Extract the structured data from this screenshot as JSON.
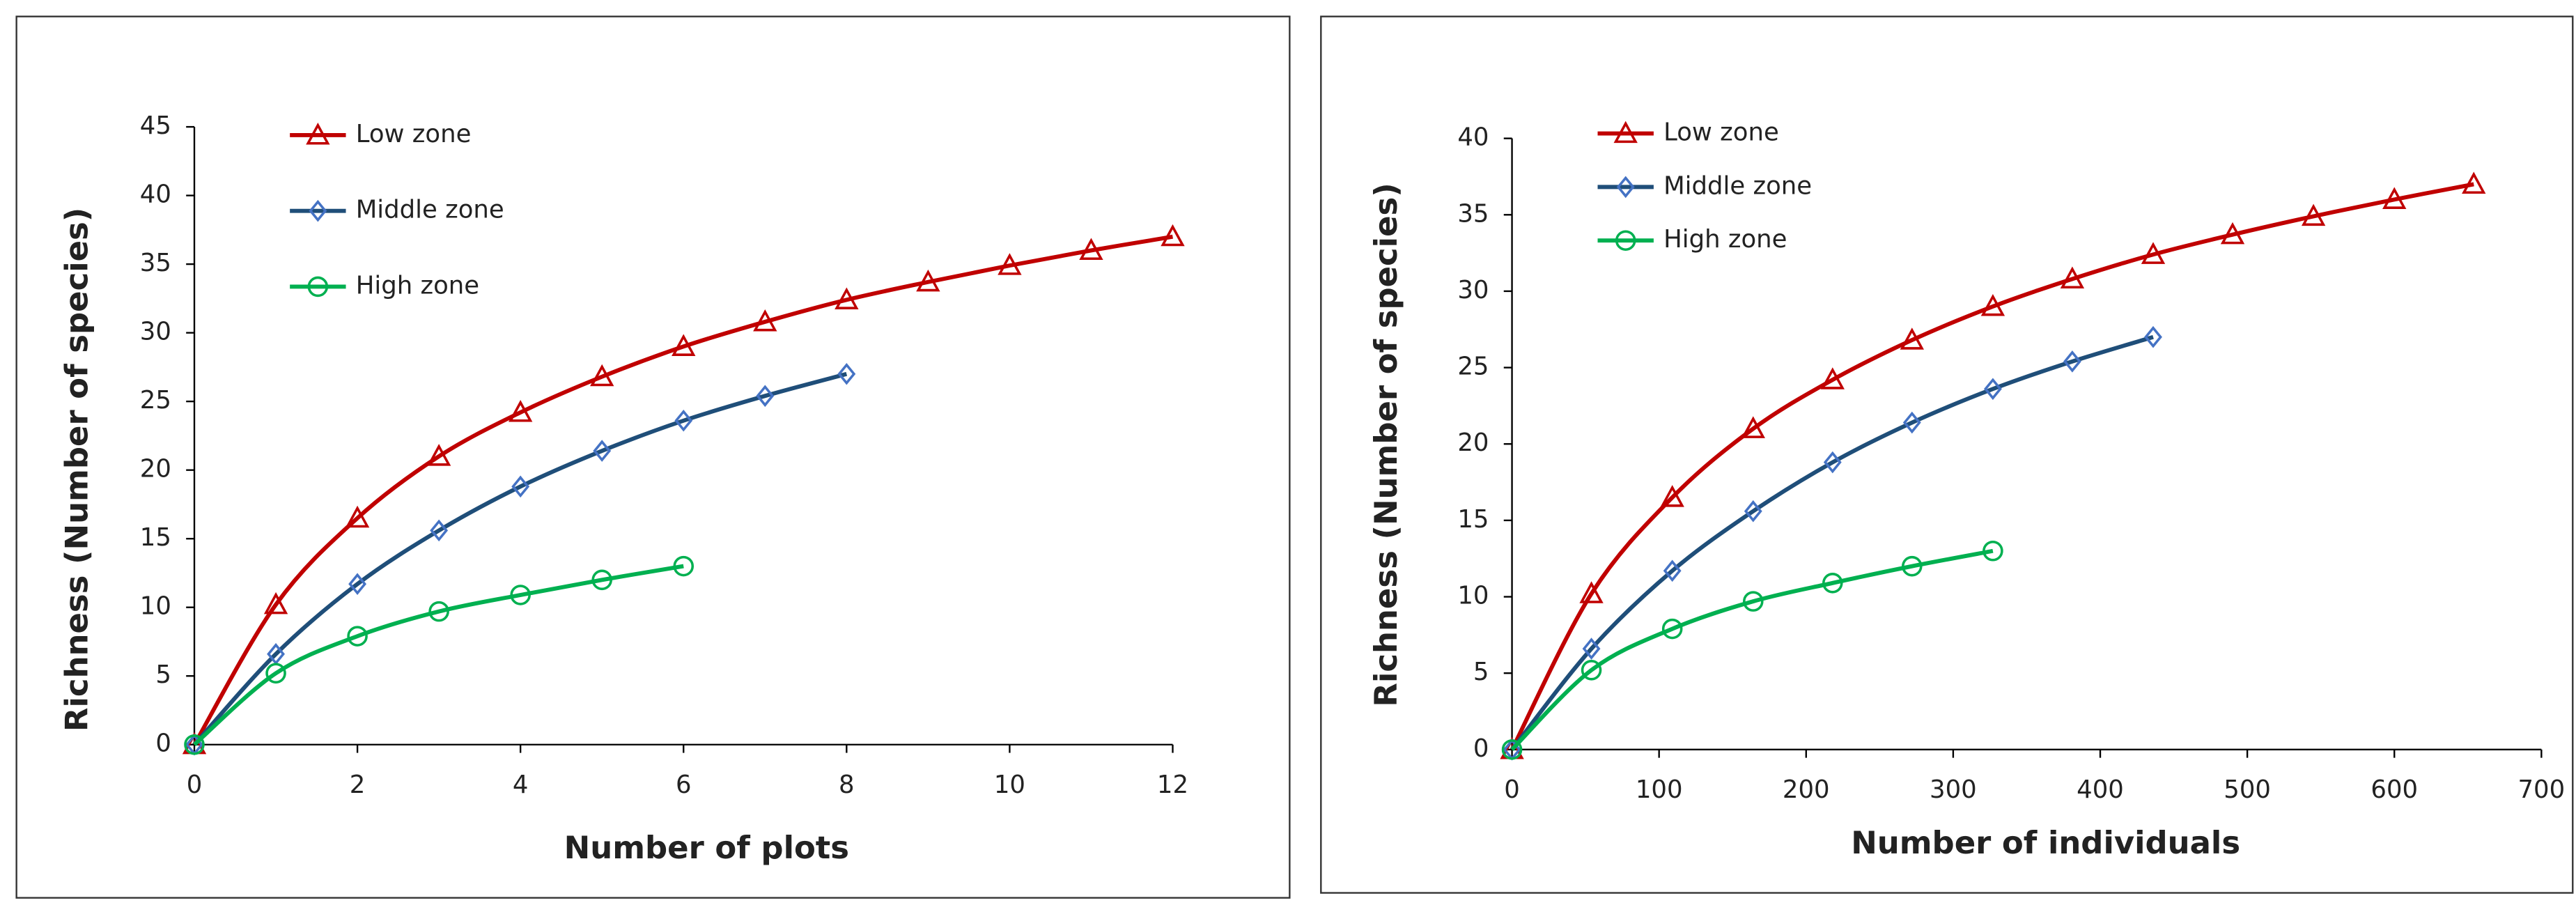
{
  "chart_data": [
    {
      "type": "line",
      "x_label": "Number of plots",
      "y_label": "Richness (Number of species)",
      "xlim": [
        0,
        12
      ],
      "xticks": [
        0,
        2,
        4,
        6,
        8,
        10,
        12
      ],
      "ylim": [
        0,
        45
      ],
      "yticks": [
        0,
        5,
        10,
        15,
        20,
        25,
        30,
        35,
        40,
        45
      ],
      "series": [
        {
          "name": "Low zone",
          "color": "#c00000",
          "marker": "triangle",
          "x": [
            0,
            1,
            2,
            3,
            4,
            5,
            6,
            7,
            8,
            9,
            10,
            11,
            12
          ],
          "values": [
            0,
            10.2,
            16.5,
            21,
            24.2,
            26.8,
            29,
            30.8,
            32.4,
            33.7,
            34.9,
            36,
            37
          ]
        },
        {
          "name": "Middle zone",
          "color": "#1f4e79",
          "marker": "diamond",
          "x": [
            0,
            1,
            2,
            3,
            4,
            5,
            6,
            7,
            8
          ],
          "values": [
            0,
            6.6,
            11.7,
            15.6,
            18.8,
            21.4,
            23.6,
            25.4,
            27
          ]
        },
        {
          "name": "High zone",
          "color": "#00b050",
          "marker": "circle",
          "x": [
            0,
            1,
            2,
            3,
            4,
            5,
            6
          ],
          "values": [
            0,
            5.2,
            7.9,
            9.7,
            10.9,
            12,
            13
          ]
        }
      ]
    },
    {
      "type": "line",
      "x_label": "Number of individuals",
      "y_label": "Richness (Number of species)",
      "xlim": [
        0,
        700
      ],
      "xticks": [
        0,
        100,
        200,
        300,
        400,
        500,
        600,
        700
      ],
      "ylim": [
        0,
        40
      ],
      "yticks": [
        0,
        5,
        10,
        15,
        20,
        25,
        30,
        35,
        40
      ],
      "series": [
        {
          "name": "Low zone",
          "color": "#c00000",
          "marker": "triangle",
          "x": [
            0,
            54,
            109,
            164,
            218,
            272,
            327,
            381,
            436,
            490,
            545,
            600,
            654
          ],
          "values": [
            0,
            10.2,
            16.5,
            21,
            24.2,
            26.8,
            29,
            30.8,
            32.4,
            33.7,
            34.9,
            36,
            37
          ]
        },
        {
          "name": "Middle zone",
          "color": "#1f4e79",
          "marker": "diamond",
          "x": [
            0,
            54,
            109,
            164,
            218,
            272,
            327,
            381,
            436
          ],
          "values": [
            0,
            6.6,
            11.7,
            15.6,
            18.8,
            21.4,
            23.6,
            25.4,
            27
          ]
        },
        {
          "name": "High zone",
          "color": "#00b050",
          "marker": "circle",
          "x": [
            0,
            54,
            109,
            164,
            218,
            272,
            327
          ],
          "values": [
            0,
            5.2,
            7.9,
            9.7,
            10.9,
            12,
            13
          ]
        }
      ]
    }
  ]
}
